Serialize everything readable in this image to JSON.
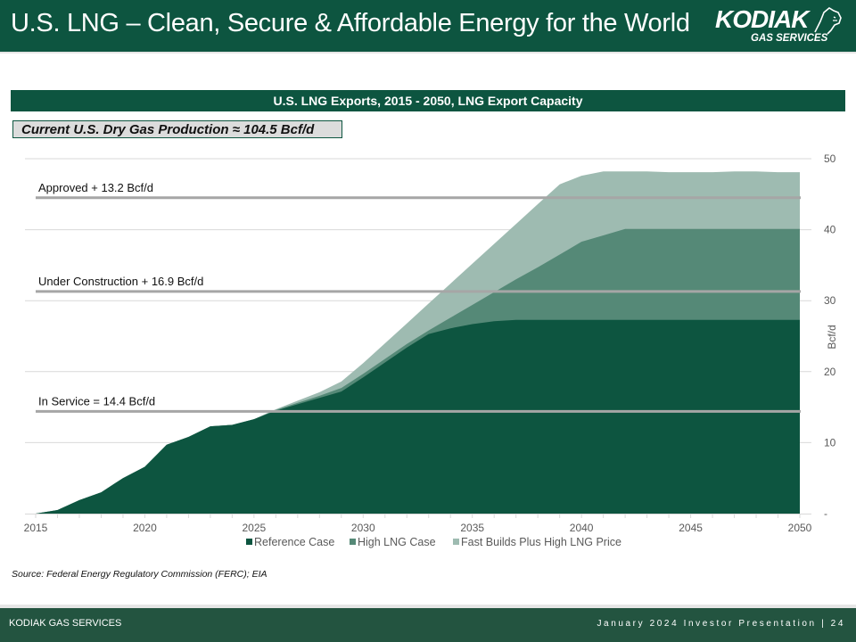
{
  "header": {
    "title": "U.S. LNG – Clean, Secure & Affordable Energy for the World",
    "logo_word": "KODIAK",
    "logo_sub": "GAS SERVICES",
    "logo_icon": "bear-head-icon"
  },
  "chart_banner": "U.S. LNG Exports, 2015 - 2050, LNG Export Capacity",
  "callout": "Current U.S. Dry Gas Production ≈ 104.5 Bcf/d",
  "source": "Source: Federal Energy Regulatory Commission (FERC); EIA",
  "footer": {
    "left": "KODIAK GAS SERVICES",
    "right": "January 2024 Investor Presentation | 24"
  },
  "colors": {
    "brand": "#0d5540",
    "reference": "#0d5540",
    "high_lng": "#558977",
    "fast_builds": "#9ebbb1",
    "reference_line": "#a6a6a6"
  },
  "chart_data": {
    "type": "area",
    "title": "U.S. LNG Exports, 2015 - 2050, LNG Export Capacity",
    "xlabel": "",
    "ylabel": "Bcf/d",
    "x": [
      2015,
      2016,
      2017,
      2018,
      2019,
      2020,
      2021,
      2022,
      2023,
      2024,
      2025,
      2026,
      2027,
      2028,
      2029,
      2030,
      2031,
      2032,
      2033,
      2034,
      2035,
      2036,
      2037,
      2038,
      2039,
      2040,
      2041,
      2042,
      2043,
      2044,
      2045,
      2046,
      2047,
      2048,
      2049,
      2050
    ],
    "xlim": [
      2015,
      2050
    ],
    "x_ticks": [
      "2015",
      "2020",
      "2025",
      "2030",
      "2035",
      "2040",
      "2045",
      "2050"
    ],
    "ylim": [
      0,
      50
    ],
    "y_ticks": [
      "-",
      "10",
      "20",
      "30",
      "40",
      "50"
    ],
    "y_tick_values": [
      0,
      10,
      20,
      30,
      40,
      50
    ],
    "grid": true,
    "legend_position": "bottom",
    "series": [
      {
        "name": "Fast Builds Plus High LNG Price",
        "color_key": "fast_builds",
        "values": [
          0,
          0.5,
          1.9,
          3,
          5,
          6.6,
          9.7,
          10.8,
          12.3,
          12.5,
          13.3,
          14.7,
          15.9,
          17.1,
          18.6,
          21.2,
          24,
          26.8,
          29.6,
          32.4,
          35.2,
          38,
          40.8,
          43.6,
          46.4,
          47.6,
          48.2,
          48.2,
          48.2,
          48.1,
          48.1,
          48.1,
          48.2,
          48.2,
          48.1,
          48.1
        ]
      },
      {
        "name": "High LNG Case",
        "color_key": "high_lng",
        "values": [
          0,
          0.5,
          1.9,
          3,
          5,
          6.6,
          9.7,
          10.8,
          12.3,
          12.5,
          13.3,
          14.6,
          15.6,
          16.6,
          17.7,
          19.7,
          21.8,
          23.9,
          25.8,
          27.6,
          29.4,
          31.2,
          33,
          34.7,
          36.5,
          38.3,
          39.2,
          40.1,
          40.1,
          40.1,
          40.1,
          40.1,
          40.1,
          40.1,
          40.1,
          40.1
        ]
      },
      {
        "name": "Reference Case",
        "color_key": "reference",
        "values": [
          0,
          0.5,
          1.9,
          3,
          5,
          6.6,
          9.7,
          10.8,
          12.3,
          12.5,
          13.3,
          14.5,
          15.4,
          16.3,
          17.2,
          19.2,
          21.3,
          23.4,
          25.3,
          26.1,
          26.7,
          27.1,
          27.3,
          27.3,
          27.3,
          27.3,
          27.3,
          27.3,
          27.3,
          27.3,
          27.3,
          27.3,
          27.3,
          27.3,
          27.3,
          27.3
        ]
      }
    ],
    "legend": [
      "Reference Case",
      "High LNG Case",
      "Fast Builds Plus High LNG Price"
    ],
    "reference_lines": [
      {
        "label": "Approved + 13.2 Bcf/d",
        "value": 44.5
      },
      {
        "label": "Under Construction + 16.9 Bcf/d",
        "value": 31.3
      },
      {
        "label": "In Service = 14.4 Bcf/d",
        "value": 14.4
      }
    ]
  }
}
